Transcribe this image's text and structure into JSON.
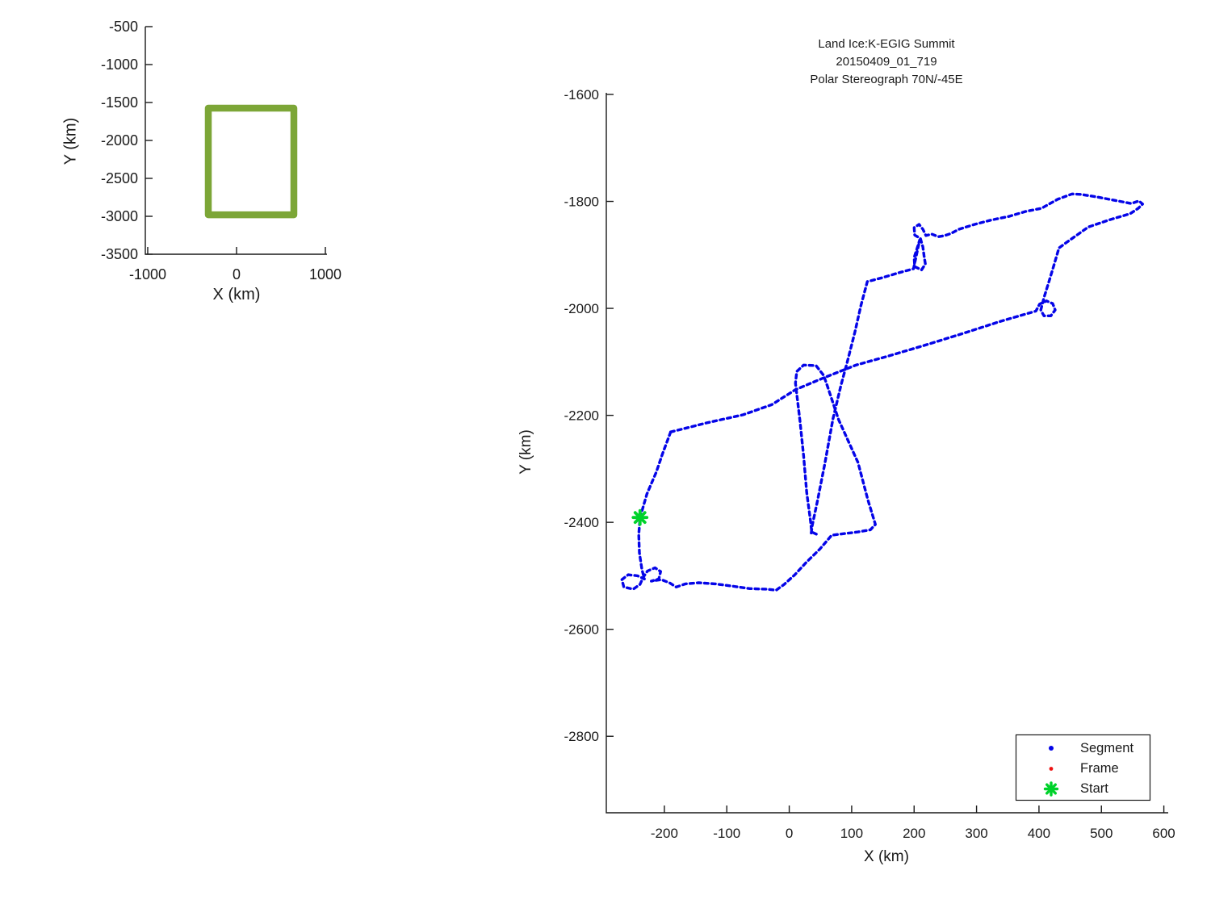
{
  "figure": {
    "background": "#ffffff",
    "text_color": "#1a1a1a"
  },
  "chart_data": [
    {
      "id": "overview-map",
      "type": "line",
      "xlabel": "X (km)",
      "ylabel": "Y (km)",
      "x_range": [
        -1027,
        1018
      ],
      "y_range": [
        -3500,
        -500
      ],
      "x_ticks": [
        -1000,
        0,
        1000
      ],
      "y_ticks": [
        -500,
        -1000,
        -1500,
        -2000,
        -2500,
        -3000,
        -3500
      ],
      "grid": false,
      "series": [
        {
          "name": "coverage-box",
          "color": "#7CA637",
          "stroke_px": 8.5,
          "closed": true,
          "points": [
            [
              -318,
              -1574
            ],
            [
              645,
              -1574
            ],
            [
              645,
              -2980
            ],
            [
              -318,
              -2980
            ]
          ]
        }
      ]
    },
    {
      "id": "flight-track",
      "type": "scatter",
      "title_lines": [
        "Land Ice:K-EGIG Summit",
        "20150409_01_719",
        "Polar Stereograph 70N/-45E"
      ],
      "xlabel": "X (km)",
      "ylabel": "Y (km)",
      "x_range": [
        -293,
        607
      ],
      "y_range": [
        -2943,
        -1597
      ],
      "x_ticks": [
        -200,
        -100,
        0,
        100,
        200,
        300,
        400,
        500,
        600
      ],
      "y_ticks": [
        -1600,
        -1800,
        -2000,
        -2200,
        -2400,
        -2600,
        -2800
      ],
      "grid": false,
      "legend": {
        "position": "lower-right",
        "items": [
          {
            "label": "Segment",
            "marker": "dot",
            "color": "#0404e8"
          },
          {
            "label": "Frame",
            "marker": "dot",
            "color": "#ee1111"
          },
          {
            "label": "Start",
            "marker": "asterisk",
            "color": "#00d22b"
          }
        ]
      },
      "series": [
        {
          "name": "segment-track-west-bottom-racetrack",
          "color": "#0404e8",
          "style": "dotted",
          "points": [
            [
              -190,
              -2231
            ],
            [
              -203,
              -2272
            ],
            [
              -213,
              -2306
            ],
            [
              -228,
              -2347
            ],
            [
              -239,
              -2391
            ],
            [
              -241,
              -2423
            ],
            [
              -240,
              -2457
            ],
            [
              -236,
              -2488
            ],
            [
              -232,
              -2506
            ],
            [
              -243,
              -2500
            ],
            [
              -258,
              -2498
            ],
            [
              -268,
              -2507
            ],
            [
              -265,
              -2521
            ],
            [
              -250,
              -2525
            ],
            [
              -239,
              -2516
            ],
            [
              -234,
              -2503
            ],
            [
              -227,
              -2491
            ],
            [
              -215,
              -2485
            ],
            [
              -206,
              -2492
            ],
            [
              -209,
              -2506
            ],
            [
              -221,
              -2510
            ],
            [
              -205,
              -2507
            ],
            [
              -192,
              -2513
            ],
            [
              -181,
              -2521
            ],
            [
              -166,
              -2515
            ],
            [
              -145,
              -2513
            ],
            [
              -119,
              -2515
            ],
            [
              -93,
              -2519
            ],
            [
              -63,
              -2524
            ],
            [
              -35,
              -2525
            ],
            [
              -21,
              -2527
            ],
            [
              -8,
              -2516
            ],
            [
              9,
              -2498
            ],
            [
              28,
              -2474
            ],
            [
              49,
              -2450
            ],
            [
              68,
              -2424
            ],
            [
              89,
              -2421
            ],
            [
              110,
              -2418
            ],
            [
              130,
              -2414
            ],
            [
              138,
              -2404
            ],
            [
              126,
              -2358
            ],
            [
              110,
              -2288
            ],
            [
              79,
              -2208
            ],
            [
              61,
              -2145
            ],
            [
              55,
              -2125
            ],
            [
              43,
              -2107
            ],
            [
              23,
              -2106
            ],
            [
              12,
              -2118
            ],
            [
              10,
              -2140
            ],
            [
              17,
              -2208
            ],
            [
              23,
              -2276
            ],
            [
              28,
              -2344
            ],
            [
              34,
              -2397
            ],
            [
              36,
              -2418
            ],
            [
              45,
              -2423
            ]
          ]
        },
        {
          "name": "segment-track-transit-east-top",
          "color": "#0404e8",
          "style": "dotted",
          "points": [
            [
              -190,
              -2231
            ],
            [
              -132,
              -2214
            ],
            [
              -74,
              -2199
            ],
            [
              -28,
              -2180
            ],
            [
              10,
              -2152
            ],
            [
              55,
              -2130
            ],
            [
              107,
              -2106
            ],
            [
              159,
              -2089
            ],
            [
              217,
              -2069
            ],
            [
              275,
              -2048
            ],
            [
              339,
              -2024
            ],
            [
              395,
              -2005
            ],
            [
              401,
              -1992
            ],
            [
              412,
              -1986
            ],
            [
              422,
              -1991
            ],
            [
              426,
              -2003
            ],
            [
              419,
              -2014
            ],
            [
              408,
              -2014
            ],
            [
              403,
              -2003
            ],
            [
              408,
              -1980
            ],
            [
              416,
              -1950
            ],
            [
              424,
              -1919
            ],
            [
              432,
              -1887
            ],
            [
              445,
              -1876
            ],
            [
              479,
              -1848
            ],
            [
              514,
              -1834
            ],
            [
              546,
              -1823
            ],
            [
              559,
              -1813
            ],
            [
              566,
              -1805
            ],
            [
              560,
              -1799
            ],
            [
              548,
              -1804
            ],
            [
              526,
              -1799
            ],
            [
              494,
              -1792
            ],
            [
              468,
              -1787
            ],
            [
              453,
              -1786
            ],
            [
              430,
              -1796
            ],
            [
              404,
              -1813
            ],
            [
              378,
              -1819
            ],
            [
              352,
              -1828
            ],
            [
              323,
              -1835
            ],
            [
              297,
              -1843
            ],
            [
              272,
              -1852
            ],
            [
              259,
              -1860
            ],
            [
              249,
              -1864
            ],
            [
              239,
              -1866
            ],
            [
              228,
              -1861
            ],
            [
              219,
              -1864
            ],
            [
              214,
              -1852
            ],
            [
              208,
              -1843
            ],
            [
              200,
              -1849
            ],
            [
              201,
              -1863
            ],
            [
              210,
              -1869
            ],
            [
              214,
              -1885
            ],
            [
              216,
              -1902
            ],
            [
              218,
              -1917
            ],
            [
              212,
              -1928
            ],
            [
              201,
              -1922
            ],
            [
              200,
              -1905
            ],
            [
              205,
              -1887
            ],
            [
              209,
              -1872
            ],
            [
              199,
              -1926
            ],
            [
              174,
              -1934
            ],
            [
              148,
              -1943
            ],
            [
              125,
              -1950
            ],
            [
              115,
              -1994
            ],
            [
              105,
              -2045
            ],
            [
              93,
              -2100
            ],
            [
              83,
              -2143
            ],
            [
              70,
              -2207
            ],
            [
              57,
              -2290
            ],
            [
              45,
              -2361
            ],
            [
              37,
              -2405
            ],
            [
              35,
              -2421
            ]
          ]
        },
        {
          "name": "start-point",
          "marker": "asterisk",
          "color": "#00d22b",
          "marker_px": 17,
          "points": [
            [
              -239,
              -2391
            ]
          ]
        }
      ]
    }
  ]
}
